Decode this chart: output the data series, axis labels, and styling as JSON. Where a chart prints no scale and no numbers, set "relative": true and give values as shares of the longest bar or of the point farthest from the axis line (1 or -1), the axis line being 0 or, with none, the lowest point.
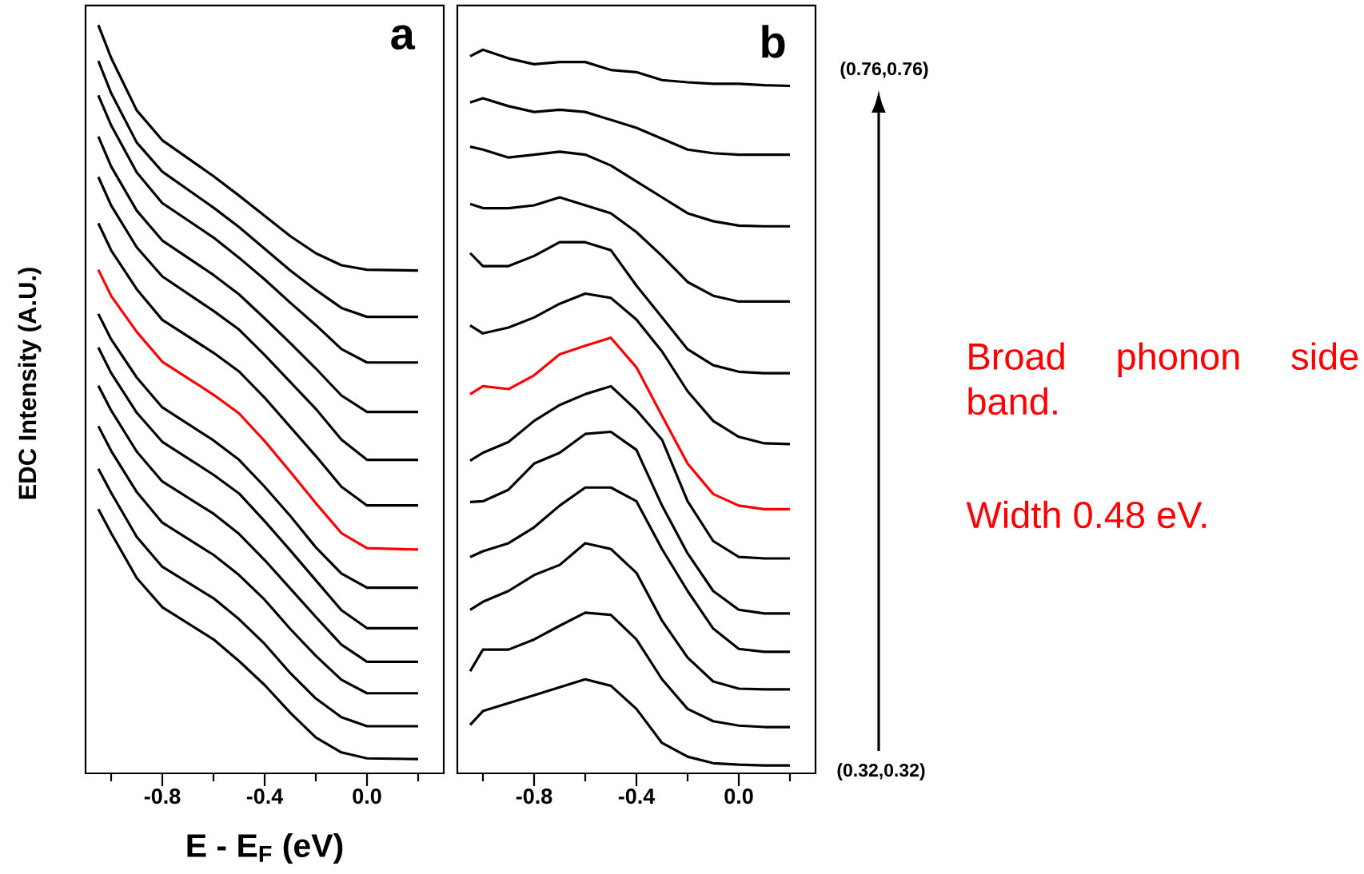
{
  "chart_data": [
    {
      "type": "line",
      "title": "a",
      "xlabel": "E - E$_{F}$ (eV)",
      "ylabel": "EDC Intensity (A.U.)",
      "relative": true,
      "xlim": [
        -1.1,
        0.3
      ],
      "xticks": [
        {
          "value": -1.0,
          "label": null
        },
        {
          "value": -0.8,
          "label": "-0.8"
        },
        {
          "value": -0.6,
          "label": null
        },
        {
          "value": -0.4,
          "label": "-0.4"
        },
        {
          "value": -0.2,
          "label": null
        },
        {
          "value": 0,
          "label": "0.0"
        },
        {
          "value": 0.2,
          "label": null
        }
      ],
      "x": [
        -1.05,
        -1.0,
        -0.9,
        -0.8,
        -0.6,
        -0.5,
        -0.4,
        -0.3,
        -0.2,
        -0.1,
        0.0,
        0.2
      ],
      "series": [
        {
          "color": "#000000",
          "values": [
            1.0,
            0.956,
            0.886,
            0.846,
            0.798,
            0.772,
            0.745,
            0.718,
            0.695,
            0.679,
            0.673,
            0.672
          ]
        },
        {
          "color": "#000000",
          "values": [
            0.952,
            0.909,
            0.843,
            0.804,
            0.756,
            0.73,
            0.701,
            0.672,
            0.646,
            0.622,
            0.61,
            0.61
          ]
        },
        {
          "color": "#000000",
          "values": [
            0.906,
            0.866,
            0.803,
            0.762,
            0.716,
            0.689,
            0.66,
            0.629,
            0.599,
            0.567,
            0.549,
            0.549
          ]
        },
        {
          "color": "#000000",
          "values": [
            0.851,
            0.811,
            0.752,
            0.712,
            0.666,
            0.64,
            0.608,
            0.575,
            0.541,
            0.505,
            0.483,
            0.483
          ]
        },
        {
          "color": "#000000",
          "values": [
            0.797,
            0.759,
            0.703,
            0.664,
            0.618,
            0.593,
            0.559,
            0.523,
            0.487,
            0.446,
            0.419,
            0.419
          ]
        },
        {
          "color": "#000000",
          "values": [
            0.735,
            0.699,
            0.647,
            0.606,
            0.562,
            0.537,
            0.502,
            0.463,
            0.424,
            0.383,
            0.358,
            0.358
          ]
        },
        {
          "color": "#ff0000",
          "values": [
            0.673,
            0.638,
            0.59,
            0.55,
            0.506,
            0.481,
            0.444,
            0.403,
            0.361,
            0.321,
            0.301,
            0.299
          ]
        },
        {
          "color": "#000000",
          "values": [
            0.614,
            0.58,
            0.529,
            0.489,
            0.445,
            0.419,
            0.383,
            0.344,
            0.302,
            0.267,
            0.248,
            0.248
          ]
        },
        {
          "color": "#000000",
          "values": [
            0.569,
            0.535,
            0.482,
            0.443,
            0.399,
            0.374,
            0.337,
            0.298,
            0.258,
            0.218,
            0.194,
            0.194
          ]
        },
        {
          "color": "#000000",
          "values": [
            0.518,
            0.485,
            0.43,
            0.39,
            0.347,
            0.32,
            0.285,
            0.247,
            0.209,
            0.172,
            0.149,
            0.149
          ]
        },
        {
          "color": "#000000",
          "values": [
            0.464,
            0.431,
            0.376,
            0.335,
            0.292,
            0.265,
            0.232,
            0.193,
            0.157,
            0.125,
            0.107,
            0.107
          ]
        },
        {
          "color": "#000000",
          "values": [
            0.407,
            0.375,
            0.316,
            0.276,
            0.234,
            0.206,
            0.173,
            0.134,
            0.1,
            0.075,
            0.063,
            0.063
          ]
        },
        {
          "color": "#000000",
          "values": [
            0.353,
            0.321,
            0.261,
            0.222,
            0.179,
            0.15,
            0.118,
            0.081,
            0.048,
            0.028,
            0.02,
            0.019
          ]
        }
      ]
    },
    {
      "type": "line",
      "title": "b",
      "relative": true,
      "xlim": [
        -1.1,
        0.3
      ],
      "xticks": [
        {
          "value": -1.0,
          "label": null
        },
        {
          "value": -0.8,
          "label": "-0.8"
        },
        {
          "value": -0.6,
          "label": null
        },
        {
          "value": -0.4,
          "label": "-0.4"
        },
        {
          "value": -0.2,
          "label": null
        },
        {
          "value": 0,
          "label": "0.0"
        },
        {
          "value": 0.2,
          "label": null
        }
      ],
      "x": [
        -1.05,
        -1.0,
        -0.9,
        -0.8,
        -0.7,
        -0.6,
        -0.5,
        -0.4,
        -0.3,
        -0.2,
        -0.1,
        0.0,
        0.1,
        0.2
      ],
      "series": [
        {
          "color": "#000000",
          "values": [
            0.991,
            1.0,
            0.988,
            0.98,
            0.983,
            0.983,
            0.972,
            0.969,
            0.958,
            0.955,
            0.953,
            0.953,
            0.951,
            0.95
          ]
        },
        {
          "color": "#000000",
          "values": [
            0.927,
            0.933,
            0.922,
            0.914,
            0.917,
            0.914,
            0.903,
            0.892,
            0.877,
            0.862,
            0.857,
            0.855,
            0.855,
            0.855
          ]
        },
        {
          "color": "#000000",
          "values": [
            0.866,
            0.862,
            0.851,
            0.855,
            0.859,
            0.855,
            0.84,
            0.818,
            0.796,
            0.774,
            0.763,
            0.757,
            0.756,
            0.756
          ]
        },
        {
          "color": "#000000",
          "values": [
            0.787,
            0.781,
            0.781,
            0.785,
            0.796,
            0.785,
            0.774,
            0.748,
            0.715,
            0.679,
            0.66,
            0.652,
            0.652,
            0.652
          ]
        },
        {
          "color": "#000000",
          "values": [
            0.719,
            0.701,
            0.701,
            0.715,
            0.734,
            0.734,
            0.723,
            0.674,
            0.63,
            0.586,
            0.564,
            0.555,
            0.553,
            0.553
          ]
        },
        {
          "color": "#000000",
          "values": [
            0.619,
            0.608,
            0.616,
            0.63,
            0.649,
            0.663,
            0.657,
            0.627,
            0.583,
            0.528,
            0.487,
            0.465,
            0.456,
            0.455
          ]
        },
        {
          "color": "#ff0000",
          "values": [
            0.524,
            0.535,
            0.531,
            0.55,
            0.579,
            0.591,
            0.602,
            0.561,
            0.494,
            0.428,
            0.386,
            0.37,
            0.365,
            0.365
          ]
        },
        {
          "color": "#000000",
          "values": [
            0.432,
            0.443,
            0.458,
            0.487,
            0.509,
            0.524,
            0.535,
            0.502,
            0.461,
            0.376,
            0.321,
            0.299,
            0.297,
            0.297
          ]
        },
        {
          "color": "#000000",
          "values": [
            0.375,
            0.376,
            0.392,
            0.428,
            0.443,
            0.469,
            0.472,
            0.447,
            0.37,
            0.304,
            0.252,
            0.226,
            0.221,
            0.221
          ]
        },
        {
          "color": "#000000",
          "values": [
            0.299,
            0.307,
            0.318,
            0.34,
            0.37,
            0.395,
            0.395,
            0.376,
            0.31,
            0.252,
            0.2,
            0.172,
            0.168,
            0.168
          ]
        },
        {
          "color": "#000000",
          "values": [
            0.226,
            0.237,
            0.252,
            0.274,
            0.288,
            0.318,
            0.31,
            0.277,
            0.211,
            0.16,
            0.127,
            0.117,
            0.116,
            0.116
          ]
        },
        {
          "color": "#000000",
          "values": [
            0.141,
            0.171,
            0.171,
            0.185,
            0.204,
            0.222,
            0.219,
            0.185,
            0.13,
            0.089,
            0.072,
            0.066,
            0.064,
            0.064
          ]
        },
        {
          "color": "#000000",
          "values": [
            0.067,
            0.086,
            0.097,
            0.108,
            0.119,
            0.13,
            0.121,
            0.089,
            0.042,
            0.023,
            0.014,
            0.012,
            0.011,
            0.011
          ]
        }
      ],
      "annotations": [
        "(0.76,0.76)",
        "(0.32,0.32)",
        "Broad phonon side band.",
        "Width 0.48 eV."
      ]
    }
  ]
}
